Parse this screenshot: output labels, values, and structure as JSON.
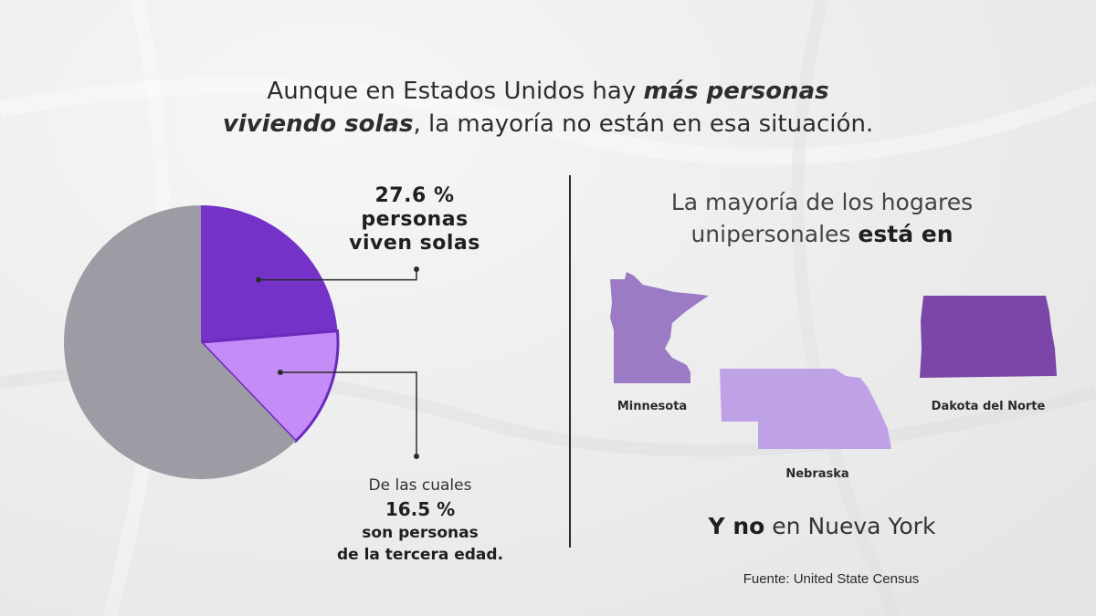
{
  "headline": {
    "part1": "Aunque en ",
    "part2": "Estados Unidos hay ",
    "emphasis1": "más personas",
    "emphasis2": "viviendo solas",
    "part3": ", la mayoría no están en esa situación."
  },
  "chart_data": {
    "type": "pie",
    "slices": [
      {
        "label": "personas viven solas",
        "value": 27.6,
        "color": "#7432c8"
      },
      {
        "label": "tercera edad",
        "value": 16.5,
        "color": "#c58cf7"
      },
      {
        "label": "resto",
        "value": 72.4,
        "color": "#9d9ca4"
      }
    ],
    "label_alone_pct": "27.6 %",
    "label_alone_text1": "personas",
    "label_alone_text2": "viven solas",
    "label_elder_intro": "De las cuales",
    "label_elder_pct": "16.5 %",
    "label_elder_text1": "son personas",
    "label_elder_text2": "de la tercera edad."
  },
  "right": {
    "title_part1": "La mayoría de los hogares",
    "title_part2": "unipersonales ",
    "title_bold": "está en",
    "states": [
      {
        "name": "Minnesota",
        "color": "#9b7cc4"
      },
      {
        "name": "Nebraska",
        "color": "#bfa1e6"
      },
      {
        "name": "Dakota del Norte",
        "color": "#7b46a8"
      }
    ],
    "bottom_bold": "Y no",
    "bottom_rest": " en Nueva York",
    "source": "Fuente: United State Census"
  }
}
